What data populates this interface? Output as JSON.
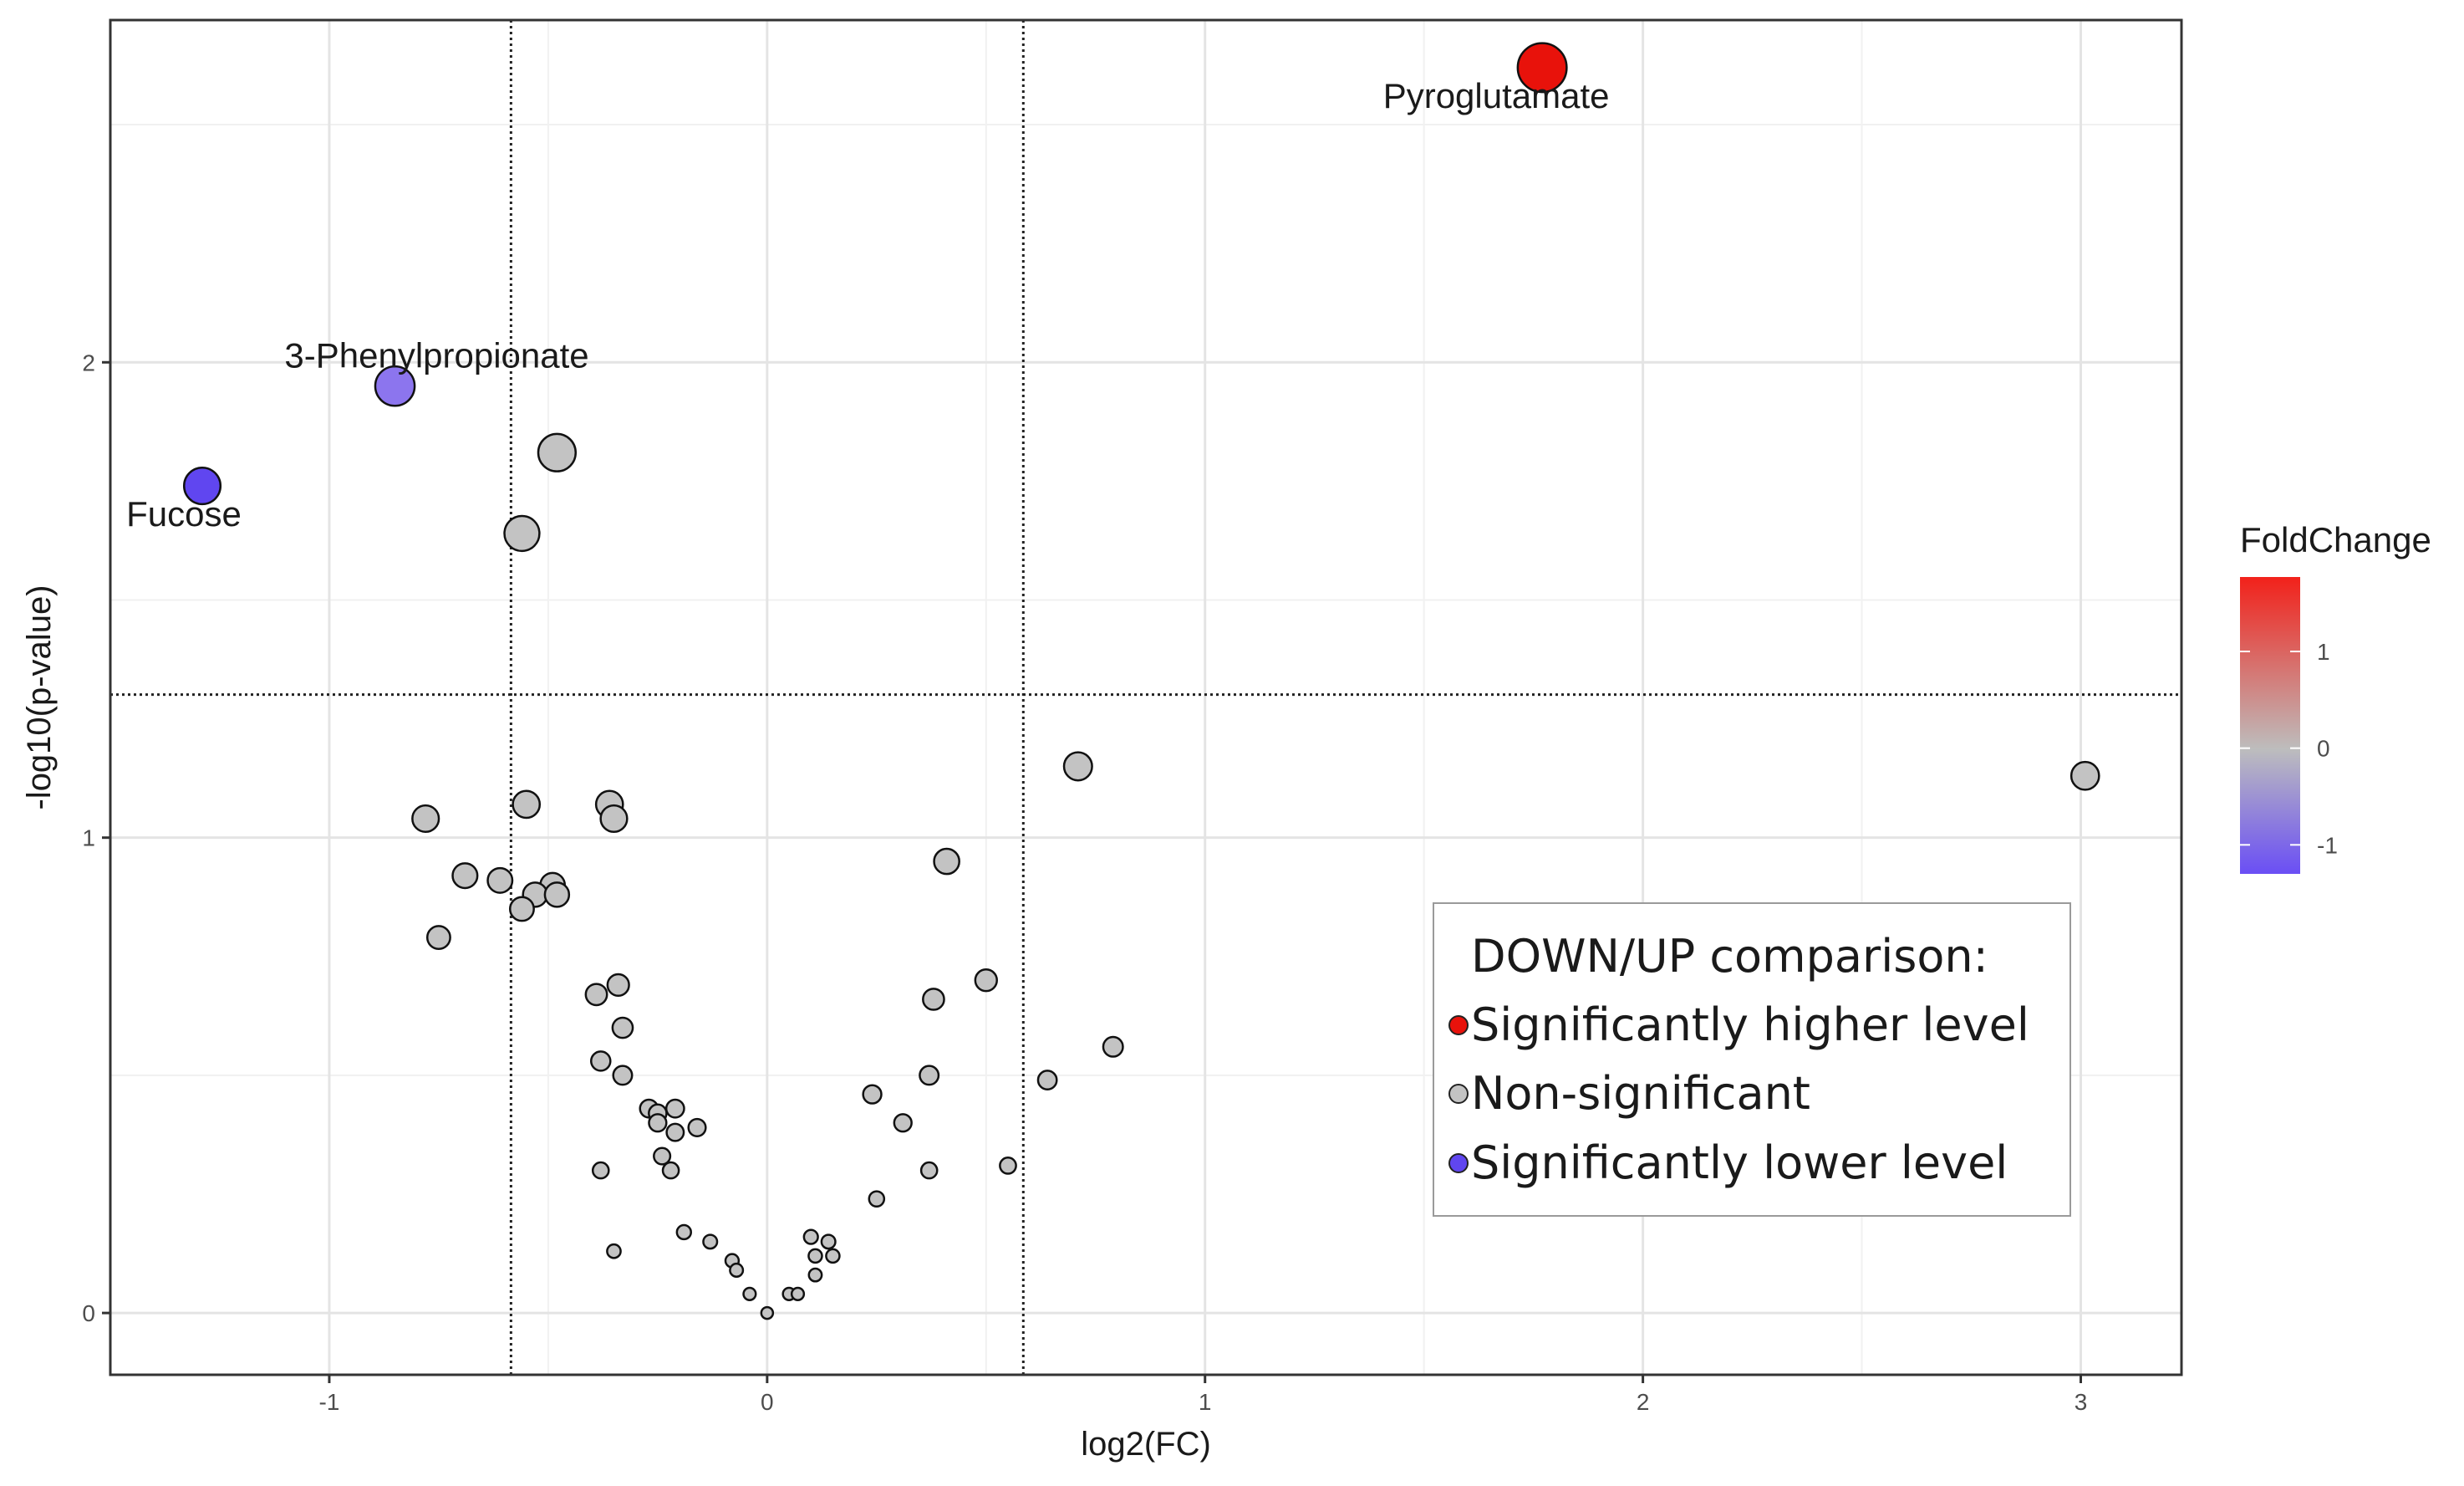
{
  "chart_data": {
    "type": "scatter",
    "title": "",
    "xlabel": "log2(FC)",
    "ylabel": "-log10(p-value)",
    "xlim": [
      -1.5,
      3.23
    ],
    "ylim": [
      -0.13,
      2.72
    ],
    "x_ticks": [
      -1,
      0,
      1,
      2,
      3
    ],
    "x_tick_labels": [
      "-1",
      "0",
      "1",
      "2",
      "3"
    ],
    "y_ticks": [
      0,
      1,
      2
    ],
    "y_tick_labels": [
      "0",
      "1",
      "2"
    ],
    "grid": true,
    "threshold_lines": {
      "vertical": [
        -0.585,
        0.585
      ],
      "horizontal": [
        1.301
      ]
    },
    "colorbar": {
      "title": "FoldChange",
      "range": [
        -1.3,
        1.77
      ],
      "ticks": [
        1,
        0,
        -1
      ],
      "tick_labels": [
        "1",
        "0",
        "-1"
      ],
      "colors": {
        "low": "#6a4ef5",
        "mid": "#bdbdbd",
        "high": "#f2211a"
      }
    },
    "legend": {
      "title": "DOWN/UP comparison:",
      "position": "bottom-right",
      "items": [
        {
          "label": "Significantly higher level",
          "color": "#e8120b"
        },
        {
          "label": "Non-significant",
          "color": "#c3c3c3"
        },
        {
          "label": "Significantly lower level",
          "color": "#6046f0"
        }
      ]
    },
    "series": [
      {
        "name": "Significantly higher level",
        "color": "#e8120b",
        "points": [
          {
            "x": 1.77,
            "y": 2.62,
            "label": "Pyroglutamate"
          }
        ]
      },
      {
        "name": "Significantly lower level",
        "points": [
          {
            "x": -0.85,
            "y": 1.95,
            "label": "3-Phenylpropionate",
            "color": "#8c75ee"
          },
          {
            "x": -1.29,
            "y": 1.74,
            "label": "Fucose",
            "color": "#6046f0"
          }
        ]
      },
      {
        "name": "Non-significant",
        "color": "#c3c3c3",
        "points": [
          {
            "x": -0.48,
            "y": 1.81
          },
          {
            "x": -0.56,
            "y": 1.64
          },
          {
            "x": 0.71,
            "y": 1.15
          },
          {
            "x": 3.01,
            "y": 1.13
          },
          {
            "x": -0.78,
            "y": 1.04
          },
          {
            "x": -0.55,
            "y": 1.07
          },
          {
            "x": -0.36,
            "y": 1.07
          },
          {
            "x": -0.35,
            "y": 1.04
          },
          {
            "x": 0.41,
            "y": 0.95
          },
          {
            "x": -0.69,
            "y": 0.92
          },
          {
            "x": -0.61,
            "y": 0.91
          },
          {
            "x": -0.49,
            "y": 0.9
          },
          {
            "x": -0.53,
            "y": 0.88
          },
          {
            "x": -0.48,
            "y": 0.88
          },
          {
            "x": -0.56,
            "y": 0.85
          },
          {
            "x": -0.75,
            "y": 0.79
          },
          {
            "x": 0.5,
            "y": 0.7
          },
          {
            "x": -0.34,
            "y": 0.69
          },
          {
            "x": -0.39,
            "y": 0.67
          },
          {
            "x": 0.38,
            "y": 0.66
          },
          {
            "x": 0.79,
            "y": 0.56
          },
          {
            "x": -0.33,
            "y": 0.6
          },
          {
            "x": -0.38,
            "y": 0.53
          },
          {
            "x": -0.33,
            "y": 0.5
          },
          {
            "x": 0.37,
            "y": 0.5
          },
          {
            "x": 0.64,
            "y": 0.49
          },
          {
            "x": 0.24,
            "y": 0.46
          },
          {
            "x": -0.27,
            "y": 0.43
          },
          {
            "x": -0.21,
            "y": 0.43
          },
          {
            "x": -0.25,
            "y": 0.42
          },
          {
            "x": -0.25,
            "y": 0.4
          },
          {
            "x": -0.16,
            "y": 0.39
          },
          {
            "x": 0.31,
            "y": 0.4
          },
          {
            "x": -0.21,
            "y": 0.38
          },
          {
            "x": -0.24,
            "y": 0.33
          },
          {
            "x": -0.22,
            "y": 0.3
          },
          {
            "x": -0.38,
            "y": 0.3
          },
          {
            "x": 0.37,
            "y": 0.3
          },
          {
            "x": 0.55,
            "y": 0.31
          },
          {
            "x": 0.25,
            "y": 0.24
          },
          {
            "x": -0.19,
            "y": 0.17
          },
          {
            "x": -0.13,
            "y": 0.15
          },
          {
            "x": 0.1,
            "y": 0.16
          },
          {
            "x": 0.14,
            "y": 0.15
          },
          {
            "x": -0.35,
            "y": 0.13
          },
          {
            "x": 0.11,
            "y": 0.12
          },
          {
            "x": 0.15,
            "y": 0.12
          },
          {
            "x": -0.08,
            "y": 0.11
          },
          {
            "x": -0.07,
            "y": 0.09
          },
          {
            "x": 0.11,
            "y": 0.08
          },
          {
            "x": 0.05,
            "y": 0.04
          },
          {
            "x": -0.04,
            "y": 0.04
          },
          {
            "x": 0.07,
            "y": 0.04
          },
          {
            "x": 0.0,
            "y": 0.0
          }
        ]
      }
    ]
  }
}
